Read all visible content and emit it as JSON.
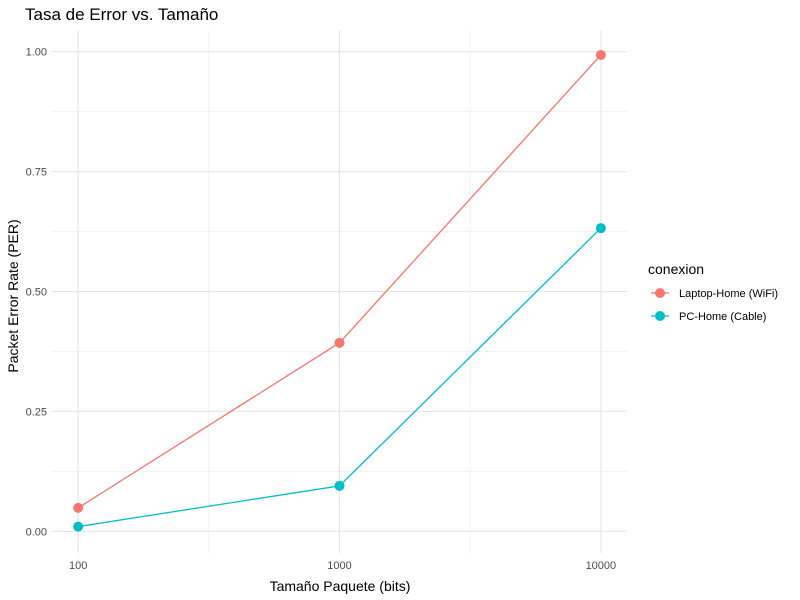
{
  "chart_data": {
    "type": "line",
    "title": "Tasa de Error vs. Tamaño",
    "xlabel": "Tamaño Paquete (bits)",
    "ylabel": "Packet Error Rate (PER)",
    "x_scale": "log10",
    "xlim": [
      100,
      10000
    ],
    "ylim": [
      0,
      1
    ],
    "x_ticks": [
      100,
      1000,
      10000
    ],
    "x_tick_labels": [
      "100",
      "1000",
      "10000"
    ],
    "y_ticks": [
      0,
      0.25,
      0.5,
      0.75,
      1.0
    ],
    "y_tick_labels": [
      "0.00",
      "0.25",
      "0.50",
      "0.75",
      "1.00"
    ],
    "grid": true,
    "legend": {
      "title": "conexion",
      "placement": "right"
    },
    "series": [
      {
        "name": "Laptop-Home (WiFi)",
        "color": "#F8766D",
        "x": [
          100,
          1000,
          10000
        ],
        "y": [
          0.049,
          0.393,
          0.993
        ]
      },
      {
        "name": "PC-Home (Cable)",
        "color": "#00BFC4",
        "x": [
          100,
          1000,
          10000
        ],
        "y": [
          0.01,
          0.095,
          0.632
        ]
      }
    ]
  }
}
